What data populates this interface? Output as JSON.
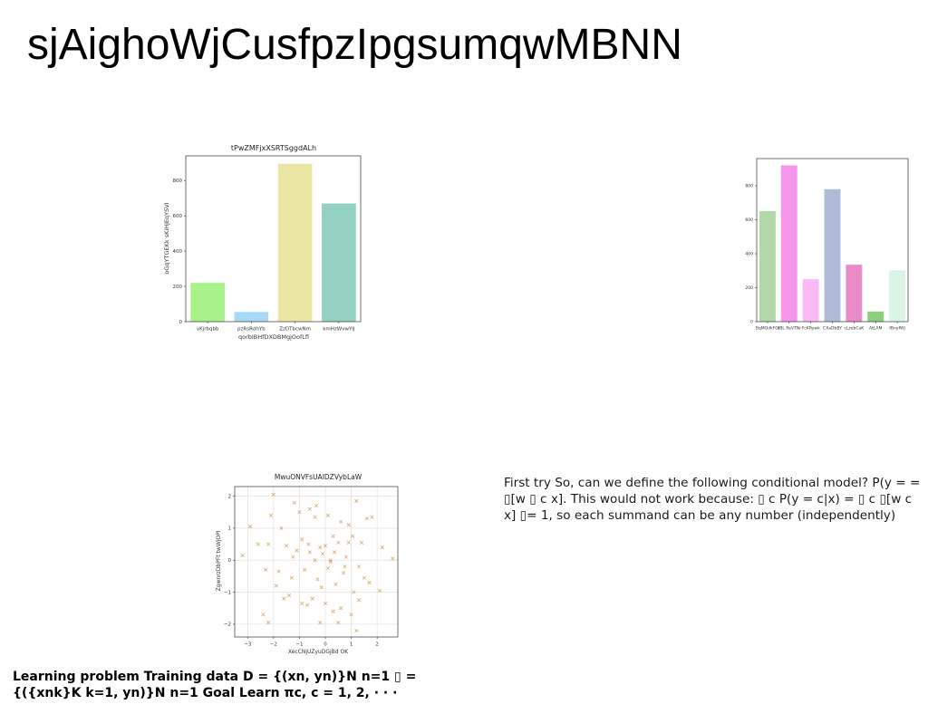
{
  "slide": {
    "title": "sjAighoWjCusfpzIpgsumqwMBNN",
    "body_text": "First try So, can we define the following conditional model? P(y = = ▯[w ▯ c x]. This would not work because: ▯ c P(y = c|x) = ▯ c ▯[w c x] ▯= 1, so each summand can be any number (independently)",
    "bold_text": "Learning problem Training data D = {(xn, yn)}N n=1 ▯ = {({xnk}K k=1, yn)}N n=1 Goal Learn πc, c = 1, 2, · · ·"
  },
  "chart_data": [
    {
      "type": "bar",
      "title": "tPwZMFjxXSRTSggdALh",
      "xlabel": "qorbIBHfDXDBMgjOofLfl",
      "ylabel": "oGqYTGEKk sKiHjEqYSVI",
      "categories": [
        "vKjrbqbb",
        "pzRsRdhYb",
        "ZzDTbcwNm",
        "kmHzWvwYIJ"
      ],
      "values": [
        220,
        55,
        895,
        670
      ],
      "colors": [
        "#a8f28c",
        "#a9d8f5",
        "#ebe6a4",
        "#93d1c4"
      ],
      "ylim": [
        0,
        940
      ],
      "yticks": [
        0,
        200,
        400,
        600,
        800
      ],
      "grid": false
    },
    {
      "type": "bar",
      "title": "",
      "xlabel": "",
      "ylabel": "",
      "categories": [
        "BqMOdkFGl",
        "dBL ReVTNr",
        "FcKPpwk",
        "CXaDbBY",
        "cLzebCaK",
        "AtLAM",
        "fBnyfWJ"
      ],
      "values": [
        650,
        920,
        250,
        780,
        335,
        60,
        302
      ],
      "colors": [
        "#b0d8a8",
        "#f595ec",
        "#fbb9f5",
        "#afbcd8",
        "#e98bc8",
        "#8ccf7e",
        "#d9f5e6"
      ],
      "ylim": [
        0,
        960
      ],
      "yticks": [
        0,
        200,
        400,
        600,
        800
      ],
      "grid": false
    },
    {
      "type": "scatter",
      "title": "MwuONVFsUAIDZVybLaW",
      "xlabel": "XecCNjUZyuDGjBd OK",
      "ylabel": "ZgwnrzDbPFt twWjOPl",
      "xlim": [
        -3.5,
        2.8
      ],
      "ylim": [
        -2.4,
        2.3
      ],
      "xticks": [
        -3,
        -2,
        -1,
        0,
        1,
        2
      ],
      "yticks": [
        -2,
        -1,
        0,
        1,
        2
      ],
      "grid": true,
      "marker": "x",
      "color": "#d8a873",
      "points": [
        [
          -2.0,
          2.05
        ],
        [
          -1.2,
          1.8
        ],
        [
          -0.6,
          1.6
        ],
        [
          0.1,
          1.4
        ],
        [
          0.6,
          1.2
        ],
        [
          1.2,
          1.85
        ],
        [
          1.6,
          1.3
        ],
        [
          -2.1,
          1.4
        ],
        [
          -1.7,
          1.0
        ],
        [
          -0.9,
          0.65
        ],
        [
          -0.4,
          1.35
        ],
        [
          0.3,
          0.75
        ],
        [
          0.9,
          0.55
        ],
        [
          1.4,
          0.55
        ],
        [
          -2.6,
          0.5
        ],
        [
          -2.2,
          0.5
        ],
        [
          -1.5,
          0.45
        ],
        [
          -1.1,
          0.3
        ],
        [
          -0.6,
          0.25
        ],
        [
          -0.2,
          0.4
        ],
        [
          0.2,
          0.0
        ],
        [
          0.5,
          0.55
        ],
        [
          0.8,
          0.1
        ],
        [
          1.3,
          -0.2
        ],
        [
          1.7,
          -0.7
        ],
        [
          2.1,
          -0.95
        ],
        [
          -3.2,
          0.15
        ],
        [
          -2.3,
          -0.3
        ],
        [
          -1.8,
          -0.35
        ],
        [
          -1.3,
          -0.55
        ],
        [
          -0.8,
          -0.3
        ],
        [
          -0.3,
          -0.6
        ],
        [
          0.1,
          -0.25
        ],
        [
          0.4,
          -0.75
        ],
        [
          0.7,
          -0.4
        ],
        [
          1.1,
          -1.0
        ],
        [
          -1.9,
          -0.8
        ],
        [
          -1.4,
          -1.1
        ],
        [
          -0.9,
          -1.35
        ],
        [
          -0.5,
          -1.2
        ],
        [
          0.0,
          -1.35
        ],
        [
          0.3,
          -1.6
        ],
        [
          0.6,
          -1.5
        ],
        [
          1.0,
          -1.7
        ],
        [
          1.3,
          -1.25
        ],
        [
          -2.4,
          -1.7
        ],
        [
          -1.6,
          -1.2
        ],
        [
          -0.2,
          -1.95
        ],
        [
          0.5,
          -1.95
        ],
        [
          1.2,
          -2.2
        ],
        [
          -2.2,
          -1.95
        ],
        [
          -0.7,
          -1.4
        ],
        [
          0.2,
          -0.05
        ],
        [
          -0.1,
          0.2
        ],
        [
          -0.4,
          0.0
        ],
        [
          0.0,
          0.45
        ],
        [
          0.35,
          0.25
        ],
        [
          -0.65,
          0.5
        ],
        [
          1.5,
          -0.55
        ],
        [
          2.2,
          0.4
        ],
        [
          2.6,
          0.05
        ],
        [
          1.8,
          1.35
        ],
        [
          -1.0,
          1.5
        ],
        [
          -0.35,
          1.7
        ],
        [
          0.9,
          1.1
        ],
        [
          -2.9,
          1.05
        ],
        [
          -1.25,
          0.1
        ],
        [
          -0.15,
          -0.85
        ],
        [
          0.75,
          -0.2
        ],
        [
          1.05,
          0.75
        ]
      ]
    }
  ]
}
